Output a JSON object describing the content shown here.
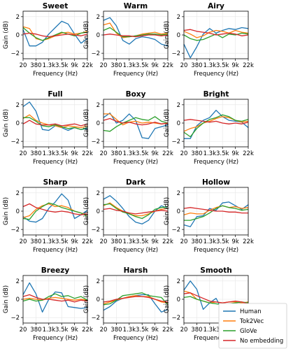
{
  "chart_data": {
    "type": "line",
    "layout": "4x3 small multiples",
    "xlabel": "Frequency (Hz)",
    "ylabel": "Gain (dB)",
    "x_tick_labels": [
      "20",
      "380",
      "1.3k",
      "3.5k",
      "9k",
      "22k"
    ],
    "y_ticks": [
      -2,
      0,
      2
    ],
    "ylim": [
      -2.6,
      2.6
    ],
    "grid": true,
    "legend_placement": "bottom-right",
    "series_names": [
      "Human",
      "Tok2Vec",
      "GloVe",
      "No embedding"
    ],
    "series_colors": [
      "#1f77b4",
      "#ff7f0e",
      "#2ca02c",
      "#d62728"
    ],
    "x_index": [
      0,
      0.5,
      1,
      1.5,
      2,
      2.5,
      3,
      3.5,
      4,
      4.5,
      5
    ],
    "panels": [
      {
        "title": "Sweet",
        "series": [
          {
            "name": "Human",
            "values": [
              0.6,
              -1.2,
              -1.2,
              -0.8,
              0.1,
              0.8,
              1.5,
              1.2,
              0.1,
              -0.9,
              -0.4
            ]
          },
          {
            "name": "Tok2Vec",
            "values": [
              0.9,
              0.7,
              -0.4,
              -0.6,
              -0.4,
              -0.1,
              0.2,
              0.3,
              0.1,
              0.2,
              0.4
            ]
          },
          {
            "name": "GloVe",
            "values": [
              0.8,
              0.2,
              -0.3,
              -0.6,
              -0.3,
              0.0,
              0.3,
              0.1,
              -0.1,
              0.2,
              0.3
            ]
          },
          {
            "name": "No embedding",
            "values": [
              0.1,
              0.2,
              0.1,
              -0.1,
              -0.2,
              -0.1,
              0.0,
              0.1,
              0.0,
              -0.1,
              0.1
            ]
          }
        ]
      },
      {
        "title": "Warm",
        "series": [
          {
            "name": "Human",
            "values": [
              1.6,
              1.9,
              1.0,
              -0.6,
              -1.0,
              -0.4,
              -0.2,
              -0.3,
              -0.5,
              -1.0,
              -1.2
            ]
          },
          {
            "name": "Tok2Vec",
            "values": [
              1.1,
              1.3,
              0.2,
              -0.3,
              -0.2,
              -0.1,
              0.1,
              0.2,
              0.3,
              0.1,
              0.2
            ]
          },
          {
            "name": "GloVe",
            "values": [
              0.5,
              0.8,
              0.3,
              -0.2,
              -0.2,
              -0.1,
              0.0,
              0.1,
              0.1,
              0.0,
              0.1
            ]
          },
          {
            "name": "No embedding",
            "values": [
              0.0,
              0.1,
              0.0,
              -0.1,
              -0.1,
              -0.2,
              -0.1,
              0.0,
              0.0,
              -0.1,
              0.0
            ]
          }
        ]
      },
      {
        "title": "Airy",
        "series": [
          {
            "name": "Human",
            "values": [
              -1.0,
              -2.5,
              -1.3,
              0.1,
              0.7,
              0.2,
              0.5,
              0.7,
              0.6,
              0.8,
              0.7
            ]
          },
          {
            "name": "Tok2Vec",
            "values": [
              0.4,
              0.1,
              -0.3,
              -0.1,
              0.3,
              0.5,
              0.4,
              0.2,
              0.5,
              0.3,
              0.2
            ]
          },
          {
            "name": "GloVe",
            "values": [
              0.0,
              -0.4,
              -0.6,
              -0.5,
              -0.2,
              0.1,
              -0.3,
              0.1,
              0.0,
              0.2,
              0.1
            ]
          },
          {
            "name": "No embedding",
            "values": [
              0.5,
              0.6,
              0.4,
              0.3,
              0.2,
              0.0,
              0.1,
              0.2,
              0.1,
              -0.1,
              0.0
            ]
          }
        ]
      },
      {
        "title": "Full",
        "series": [
          {
            "name": "Human",
            "values": [
              1.8,
              2.3,
              1.3,
              -0.7,
              -0.8,
              -0.3,
              -0.5,
              -0.8,
              -0.5,
              -0.7,
              -0.6
            ]
          },
          {
            "name": "Tok2Vec",
            "values": [
              0.5,
              0.9,
              0.3,
              0.0,
              -0.2,
              -0.3,
              -0.5,
              -0.3,
              -0.4,
              -0.5,
              -0.3
            ]
          },
          {
            "name": "GloVe",
            "values": [
              0.6,
              0.6,
              0.2,
              -0.3,
              -0.4,
              -0.2,
              -0.4,
              -0.6,
              -0.5,
              -0.7,
              -0.5
            ]
          },
          {
            "name": "No embedding",
            "values": [
              -0.1,
              0.3,
              -0.1,
              -0.2,
              -0.2,
              -0.1,
              -0.3,
              -0.2,
              -0.1,
              -0.3,
              -0.1
            ]
          }
        ]
      },
      {
        "title": "Boxy",
        "series": [
          {
            "name": "Human",
            "values": [
              0.6,
              1.1,
              0.0,
              0.3,
              1.0,
              0.3,
              -1.6,
              -1.7,
              -0.6,
              -0.4,
              -0.2
            ]
          },
          {
            "name": "Tok2Vec",
            "values": [
              1.0,
              1.0,
              0.4,
              -0.2,
              0.1,
              0.2,
              0.0,
              0.1,
              0.0,
              -0.1,
              0.0
            ]
          },
          {
            "name": "GloVe",
            "values": [
              -0.8,
              -0.9,
              -0.4,
              0.0,
              0.3,
              0.6,
              0.4,
              0.3,
              0.7,
              0.2,
              0.0
            ]
          },
          {
            "name": "No embedding",
            "values": [
              0.3,
              0.5,
              0.2,
              0.0,
              0.1,
              -0.1,
              -0.2,
              -0.1,
              0.1,
              -0.1,
              0.0
            ]
          }
        ]
      },
      {
        "title": "Bright",
        "series": [
          {
            "name": "Human",
            "values": [
              -1.7,
              -1.7,
              -0.3,
              0.3,
              0.6,
              1.4,
              0.7,
              0.3,
              0.2,
              0.1,
              -0.5
            ]
          },
          {
            "name": "Tok2Vec",
            "values": [
              -0.9,
              -0.6,
              -0.4,
              0.0,
              0.2,
              0.5,
              0.7,
              0.6,
              0.3,
              0.1,
              0.2
            ]
          },
          {
            "name": "GloVe",
            "values": [
              -1.0,
              -1.5,
              -0.6,
              0.0,
              0.4,
              0.6,
              0.9,
              0.7,
              0.3,
              0.2,
              0.4
            ]
          },
          {
            "name": "No embedding",
            "values": [
              0.3,
              0.4,
              0.3,
              0.2,
              0.1,
              0.2,
              0.0,
              -0.1,
              0.0,
              -0.1,
              0.1
            ]
          }
        ]
      },
      {
        "title": "Sharp",
        "series": [
          {
            "name": "Human",
            "values": [
              -0.6,
              -1.1,
              -1.2,
              -0.8,
              0.3,
              1.0,
              1.9,
              1.2,
              -0.8,
              -0.4,
              0.1
            ]
          },
          {
            "name": "Tok2Vec",
            "values": [
              -0.7,
              -0.5,
              0.2,
              0.6,
              0.8,
              0.5,
              0.6,
              0.4,
              0.0,
              -0.2,
              -0.4
            ]
          },
          {
            "name": "GloVe",
            "values": [
              -0.8,
              -0.9,
              0.0,
              0.5,
              0.9,
              0.7,
              0.4,
              0.2,
              0.0,
              -0.2,
              -0.6
            ]
          },
          {
            "name": "No embedding",
            "values": [
              0.5,
              0.8,
              0.4,
              0.2,
              0.0,
              -0.1,
              0.0,
              -0.1,
              -0.3,
              -0.4,
              -0.3
            ]
          }
        ]
      },
      {
        "title": "Dark",
        "series": [
          {
            "name": "Human",
            "values": [
              1.3,
              1.7,
              1.1,
              0.3,
              -0.6,
              -1.2,
              -1.4,
              -1.0,
              0.0,
              0.6,
              0.3
            ]
          },
          {
            "name": "Tok2Vec",
            "values": [
              0.6,
              0.9,
              0.4,
              0.0,
              -0.3,
              -0.5,
              -0.5,
              -0.3,
              0.0,
              0.2,
              0.3
            ]
          },
          {
            "name": "GloVe",
            "values": [
              0.7,
              0.8,
              0.3,
              -0.1,
              -0.3,
              -0.6,
              -0.8,
              -0.4,
              0.2,
              0.4,
              0.5
            ]
          },
          {
            "name": "No embedding",
            "values": [
              0.2,
              0.3,
              0.1,
              0.0,
              -0.2,
              -0.3,
              -0.2,
              -0.1,
              0.0,
              0.1,
              0.0
            ]
          }
        ]
      },
      {
        "title": "Hollow",
        "series": [
          {
            "name": "Human",
            "values": [
              -1.5,
              -1.7,
              -0.6,
              -0.5,
              0.3,
              0.1,
              0.9,
              1.0,
              0.6,
              0.2,
              0.7
            ]
          },
          {
            "name": "Tok2Vec",
            "values": [
              -0.4,
              -0.2,
              -0.3,
              -0.3,
              0.1,
              0.4,
              0.6,
              0.4,
              0.5,
              0.3,
              0.4
            ]
          },
          {
            "name": "GloVe",
            "values": [
              -1.0,
              -1.0,
              -0.8,
              -0.6,
              -0.2,
              0.3,
              0.6,
              0.4,
              0.3,
              0.1,
              0.2
            ]
          },
          {
            "name": "No embedding",
            "values": [
              0.3,
              0.4,
              0.3,
              0.2,
              0.1,
              0.0,
              0.0,
              -0.1,
              -0.1,
              -0.2,
              -0.2
            ]
          }
        ]
      },
      {
        "title": "Breezy",
        "series": [
          {
            "name": "Human",
            "values": [
              0.5,
              1.8,
              0.6,
              -1.4,
              0.0,
              0.8,
              0.7,
              -0.8,
              -0.9,
              -1.0,
              -0.9
            ]
          },
          {
            "name": "Tok2Vec",
            "values": [
              0.0,
              0.1,
              0.0,
              -0.1,
              0.1,
              0.2,
              0.1,
              0.0,
              -0.1,
              0.0,
              -0.1
            ]
          },
          {
            "name": "GloVe",
            "values": [
              -0.2,
              0.0,
              -0.2,
              -0.1,
              0.3,
              0.6,
              0.3,
              0.4,
              0.1,
              0.3,
              -0.1
            ]
          },
          {
            "name": "No embedding",
            "values": [
              0.3,
              0.5,
              0.2,
              0.0,
              0.0,
              -0.1,
              -0.2,
              -0.1,
              -0.3,
              -0.1,
              -0.2
            ]
          }
        ]
      },
      {
        "title": "Harsh",
        "series": [
          {
            "name": "Human",
            "values": [
              -1.2,
              -0.8,
              -0.2,
              0.1,
              0.3,
              0.4,
              0.5,
              0.5,
              -0.5,
              -1.4,
              -1.1
            ]
          },
          {
            "name": "Tok2Vec",
            "values": [
              -0.5,
              -0.3,
              -0.1,
              0.1,
              0.3,
              0.4,
              0.3,
              0.3,
              0.0,
              -0.3,
              -0.4
            ]
          },
          {
            "name": "GloVe",
            "values": [
              -0.6,
              -0.5,
              -0.1,
              0.4,
              0.5,
              0.6,
              0.7,
              0.4,
              0.3,
              0.2,
              -0.6
            ]
          },
          {
            "name": "No embedding",
            "values": [
              -0.3,
              -0.2,
              0.0,
              0.1,
              0.2,
              0.3,
              0.3,
              0.2,
              0.0,
              -0.2,
              -0.3
            ]
          }
        ]
      },
      {
        "title": "Smooth",
        "series": [
          {
            "name": "Human",
            "values": [
              1.0,
              2.0,
              1.1,
              -1.1,
              -0.4,
              0.1,
              -1.2,
              -1.4,
              -0.4,
              -1.0,
              -0.9
            ]
          },
          {
            "name": "Tok2Vec",
            "values": [
              0.9,
              0.7,
              0.0,
              -0.2,
              -0.4,
              -0.3,
              -0.4,
              -0.3,
              -0.3,
              -0.4,
              -0.3
            ]
          },
          {
            "name": "GloVe",
            "values": [
              0.2,
              0.3,
              0.0,
              -0.2,
              -0.4,
              -0.5,
              -0.6,
              -0.5,
              -0.4,
              -0.3,
              -0.4
            ]
          },
          {
            "name": "No embedding",
            "values": [
              0.6,
              0.7,
              0.4,
              0.1,
              -0.2,
              -0.3,
              -0.4,
              -0.3,
              -0.2,
              -0.3,
              -0.5
            ]
          }
        ]
      }
    ]
  }
}
